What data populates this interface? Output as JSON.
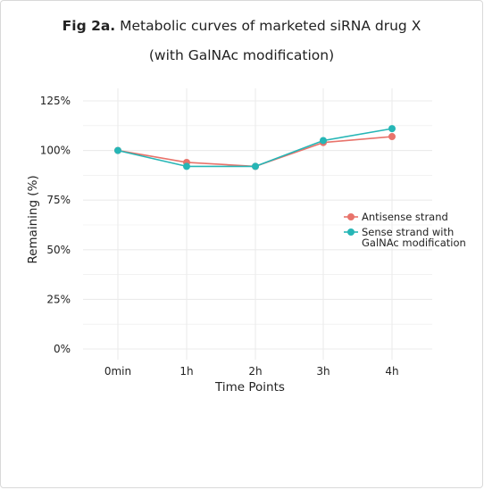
{
  "title": {
    "bold": "Fig 2a.",
    "rest": "Metabolic curves of marketed siRNA drug X",
    "line2": "(with GalNAc modification)"
  },
  "colors": {
    "antisense": "#e8736b",
    "sense": "#26b6b6",
    "grid": "#ebebeb",
    "text": "#222222"
  },
  "chart_data": {
    "type": "line",
    "categories": [
      "0min",
      "1h",
      "2h",
      "3h",
      "4h"
    ],
    "xlabel": "Time Points",
    "ylabel": "Remaining (%)",
    "ylim": [
      0,
      125
    ],
    "yticks": [
      0,
      25,
      50,
      75,
      100,
      125
    ],
    "ytick_labels": [
      "0%",
      "25%",
      "50%",
      "75%",
      "100%",
      "125%"
    ],
    "grid": true,
    "legend_position": "right",
    "series": [
      {
        "name": "Antisense strand",
        "color": "#e8736b",
        "values": [
          100,
          94,
          92,
          104,
          107
        ]
      },
      {
        "name": "Sense strand with GalNAc modification",
        "name_lines": [
          "Sense strand with",
          "GalNAc modification"
        ],
        "color": "#26b6b6",
        "values": [
          100,
          92,
          92,
          105,
          111
        ]
      }
    ]
  }
}
